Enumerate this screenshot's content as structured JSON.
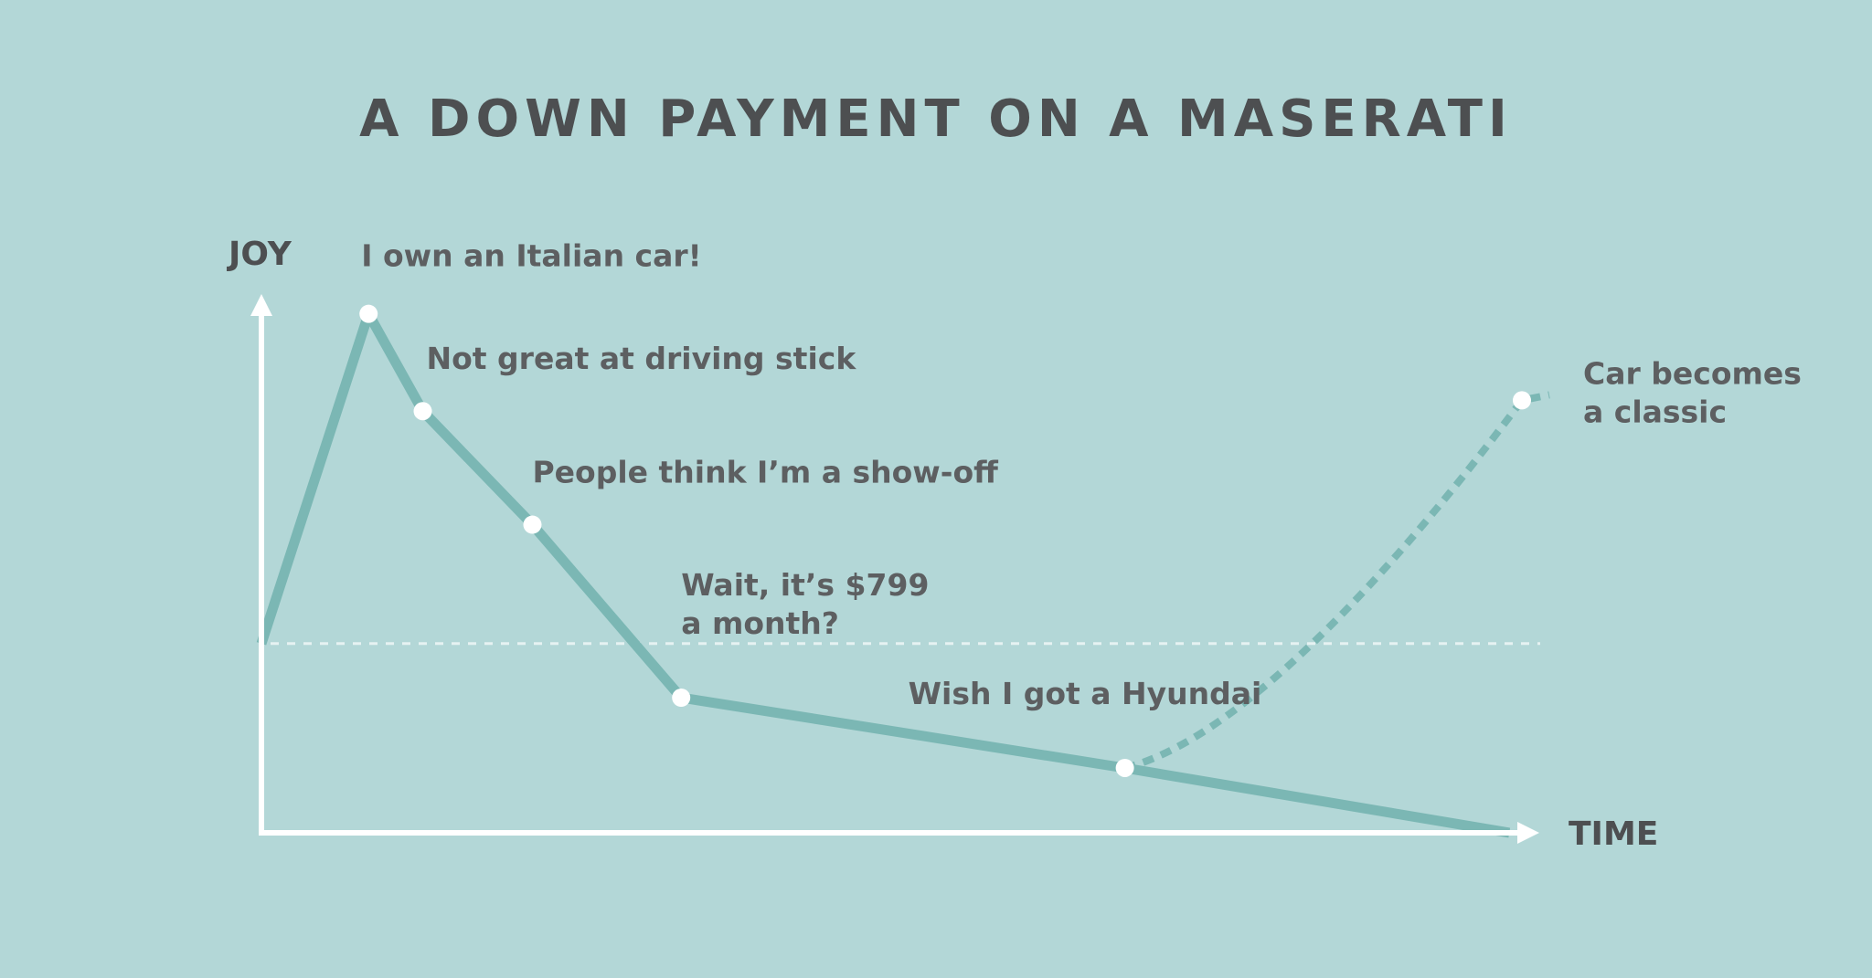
{
  "chart_data": {
    "type": "line",
    "title": "A DOWN PAYMENT ON A MASERATI",
    "xlabel": "TIME",
    "ylabel": "JOY",
    "grid": false,
    "colors": {
      "background": "#b3d7d7",
      "line": "#7bb7b4",
      "axis": "#ffffff",
      "text": "#4d4f51"
    },
    "reference_line": {
      "style": "dotted",
      "y": 0.35
    },
    "series": [
      {
        "style": "solid",
        "points": [
          {
            "x": 0.0,
            "y": 0.35
          },
          {
            "x": 0.085,
            "y": 0.96
          },
          {
            "x": 0.128,
            "y": 0.78
          },
          {
            "x": 0.215,
            "y": 0.57
          },
          {
            "x": 0.333,
            "y": 0.25
          },
          {
            "x": 0.685,
            "y": 0.12
          },
          {
            "x": 0.99,
            "y": 0.0
          }
        ]
      },
      {
        "style": "dotted",
        "points": [
          {
            "x": 0.685,
            "y": 0.12
          },
          {
            "x": 1.0,
            "y": 0.8
          }
        ]
      }
    ],
    "annotations": [
      {
        "text": [
          "I own an Italian car!"
        ],
        "x": 0.085,
        "y": 0.96
      },
      {
        "text": [
          "Not great at driving stick"
        ],
        "x": 0.128,
        "y": 0.78
      },
      {
        "text": [
          "People think I’m a show-off"
        ],
        "x": 0.215,
        "y": 0.57
      },
      {
        "text": [
          "Wait, it’s $799",
          "a month?"
        ],
        "x": 0.333,
        "y": 0.25
      },
      {
        "text": [
          "Wish I got a Hyundai"
        ],
        "x": 0.685,
        "y": 0.12
      },
      {
        "text": [
          "Car becomes",
          "a classic"
        ],
        "x": 1.0,
        "y": 0.8
      }
    ]
  }
}
